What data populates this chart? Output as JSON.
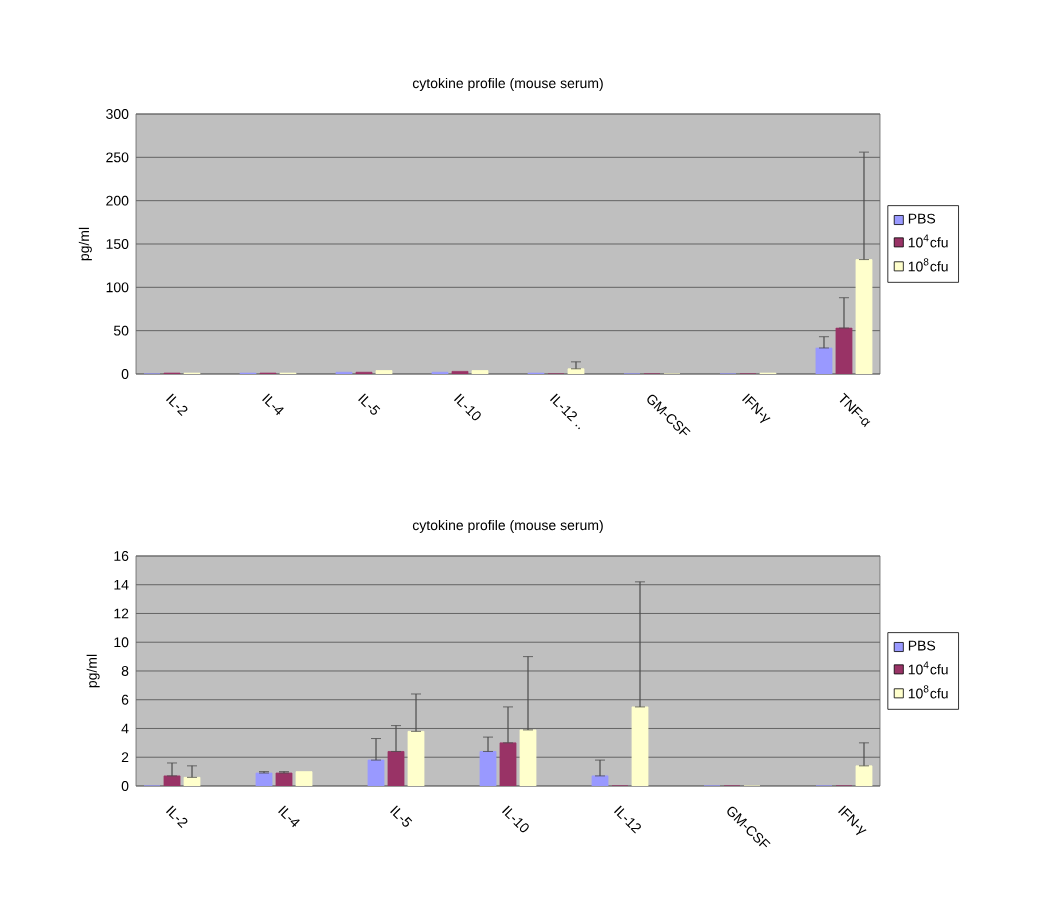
{
  "chart_data": [
    {
      "type": "bar",
      "title": "cytokine profile (mouse serum)",
      "ylabel": "pg/ml",
      "categories": [
        "IL-2",
        "IL-4",
        "IL-5",
        "IL-10",
        "IL-12 ..",
        "GM-CSF",
        "IFN-γ",
        "TNF-α"
      ],
      "series": [
        {
          "name": "PBS",
          "color": "#9999ff",
          "values": [
            0,
            1,
            2,
            2,
            1,
            0,
            0,
            30
          ],
          "errors": [
            null,
            null,
            null,
            null,
            null,
            null,
            null,
            [
              30,
              43
            ]
          ]
        },
        {
          "name": "10$^{4}$cfu",
          "color": "#993366",
          "values": [
            1,
            1,
            2,
            3,
            0,
            0,
            0,
            53
          ],
          "errors": [
            null,
            null,
            null,
            null,
            null,
            null,
            null,
            [
              53,
              88
            ]
          ]
        },
        {
          "name": "10$^{8}$cfu",
          "color": "#ffffcc",
          "values": [
            1,
            1,
            4,
            4,
            6,
            0,
            1,
            132
          ],
          "errors": [
            null,
            null,
            null,
            null,
            [
              6,
              14
            ],
            null,
            null,
            [
              132,
              256
            ]
          ]
        }
      ],
      "ylim": [
        0,
        300
      ],
      "yticks": [
        0,
        50,
        100,
        150,
        200,
        250,
        300
      ],
      "grid": "y",
      "legend": "right"
    },
    {
      "type": "bar",
      "title": "cytokine profile (mouse serum)",
      "ylabel": "pg/ml",
      "categories": [
        "IL-2",
        "IL-4",
        "IL-5",
        "IL-10",
        "IL-12",
        "GM-CSF",
        "IFN-γ"
      ],
      "series": [
        {
          "name": "PBS",
          "color": "#9999ff",
          "values": [
            0,
            0.9,
            1.8,
            2.4,
            0.7,
            0,
            0
          ],
          "errors": [
            null,
            [
              0.9,
              1.0
            ],
            [
              1.8,
              3.3
            ],
            [
              2.4,
              3.4
            ],
            [
              0.7,
              1.8
            ],
            null,
            null
          ]
        },
        {
          "name": "10$^{4}$cfu",
          "color": "#993366",
          "values": [
            0.7,
            0.9,
            2.4,
            3.0,
            0,
            0,
            0
          ],
          "errors": [
            [
              0.7,
              1.6
            ],
            [
              0.9,
              1.0
            ],
            [
              2.4,
              4.2
            ],
            [
              3.0,
              5.5
            ],
            null,
            null,
            null
          ]
        },
        {
          "name": "10$^{8}$cfu",
          "color": "#ffffcc",
          "values": [
            0.6,
            1.0,
            3.8,
            3.9,
            5.5,
            0,
            1.4
          ],
          "errors": [
            [
              0.6,
              1.4
            ],
            null,
            [
              3.8,
              6.4
            ],
            [
              3.9,
              9.0
            ],
            [
              5.5,
              14.2
            ],
            null,
            [
              1.4,
              3.0
            ]
          ]
        }
      ],
      "ylim": [
        0,
        16
      ],
      "yticks": [
        0,
        2,
        4,
        6,
        8,
        10,
        12,
        14,
        16
      ],
      "grid": "y",
      "legend": "right"
    }
  ]
}
